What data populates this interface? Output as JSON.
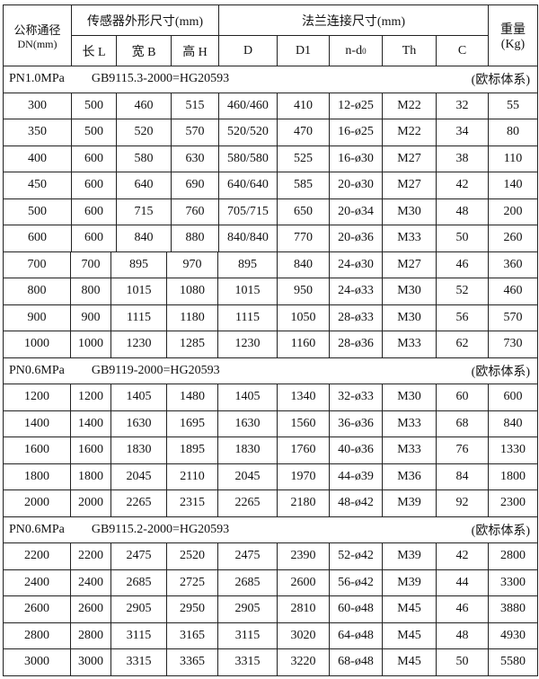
{
  "header": {
    "dn_label": "公称通径",
    "dn_unit": "DN(mm)",
    "sensor_group": "传感器外形尺寸(mm)",
    "flange_group": "法兰连接尺寸(mm)",
    "weight_label": "重量",
    "weight_unit": "(Kg)",
    "cols": [
      "长 L",
      "宽 B",
      "高 H",
      "D",
      "D1",
      "n-d",
      "Th",
      "C"
    ],
    "nd_sub": "0"
  },
  "sections": [
    {
      "pressure": "PN1.0MPa",
      "standard": "GB9115.3-2000=HG20593",
      "system": "(欧标体系)",
      "rows": [
        [
          "300",
          "500",
          "460",
          "515",
          "460/460",
          "410",
          "12-ø25",
          "M22",
          "32",
          "55"
        ],
        [
          "350",
          "500",
          "520",
          "570",
          "520/520",
          "470",
          "16-ø25",
          "M22",
          "34",
          "80"
        ],
        [
          "400",
          "600",
          "580",
          "630",
          "580/580",
          "525",
          "16-ø30",
          "M27",
          "38",
          "110"
        ],
        [
          "450",
          "600",
          "640",
          "690",
          "640/640",
          "585",
          "20-ø30",
          "M27",
          "42",
          "140"
        ],
        [
          "500",
          "600",
          "715",
          "760",
          "705/715",
          "650",
          "20-ø34",
          "M30",
          "48",
          "200"
        ],
        [
          "600",
          "600",
          "840",
          "880",
          "840/840",
          "770",
          "20-ø36",
          "M33",
          "50",
          "260"
        ],
        [
          "700",
          "700",
          "895",
          "970",
          "895",
          "840",
          "24-ø30",
          "M27",
          "46",
          "360"
        ],
        [
          "800",
          "800",
          "1015",
          "1080",
          "1015",
          "950",
          "24-ø33",
          "M30",
          "52",
          "460"
        ],
        [
          "900",
          "900",
          "1115",
          "1180",
          "1115",
          "1050",
          "28-ø33",
          "M30",
          "56",
          "570"
        ],
        [
          "1000",
          "1000",
          "1230",
          "1285",
          "1230",
          "1160",
          "28-ø36",
          "M33",
          "62",
          "730"
        ]
      ]
    },
    {
      "pressure": "PN0.6MPa",
      "standard": "GB9119-2000=HG20593",
      "system": "(欧标体系)",
      "rows": [
        [
          "1200",
          "1200",
          "1405",
          "1480",
          "1405",
          "1340",
          "32-ø33",
          "M30",
          "60",
          "600"
        ],
        [
          "1400",
          "1400",
          "1630",
          "1695",
          "1630",
          "1560",
          "36-ø36",
          "M33",
          "68",
          "840"
        ],
        [
          "1600",
          "1600",
          "1830",
          "1895",
          "1830",
          "1760",
          "40-ø36",
          "M33",
          "76",
          "1330"
        ],
        [
          "1800",
          "1800",
          "2045",
          "2110",
          "2045",
          "1970",
          "44-ø39",
          "M36",
          "84",
          "1800"
        ],
        [
          "2000",
          "2000",
          "2265",
          "2315",
          "2265",
          "2180",
          "48-ø42",
          "M39",
          "92",
          "2300"
        ]
      ]
    },
    {
      "pressure": "PN0.6MPa",
      "standard": "GB9115.2-2000=HG20593",
      "system": "(欧标体系)",
      "rows": [
        [
          "2200",
          "2200",
          "2475",
          "2520",
          "2475",
          "2390",
          "52-ø42",
          "M39",
          "42",
          "2800"
        ],
        [
          "2400",
          "2400",
          "2685",
          "2725",
          "2685",
          "2600",
          "56-ø42",
          "M39",
          "44",
          "3300"
        ],
        [
          "2600",
          "2600",
          "2905",
          "2950",
          "2905",
          "2810",
          "60-ø48",
          "M45",
          "46",
          "3880"
        ],
        [
          "2800",
          "2800",
          "3115",
          "3165",
          "3115",
          "3020",
          "64-ø48",
          "M45",
          "48",
          "4930"
        ],
        [
          "3000",
          "3000",
          "3315",
          "3365",
          "3315",
          "3220",
          "68-ø48",
          "M45",
          "50",
          "5580"
        ]
      ]
    }
  ]
}
